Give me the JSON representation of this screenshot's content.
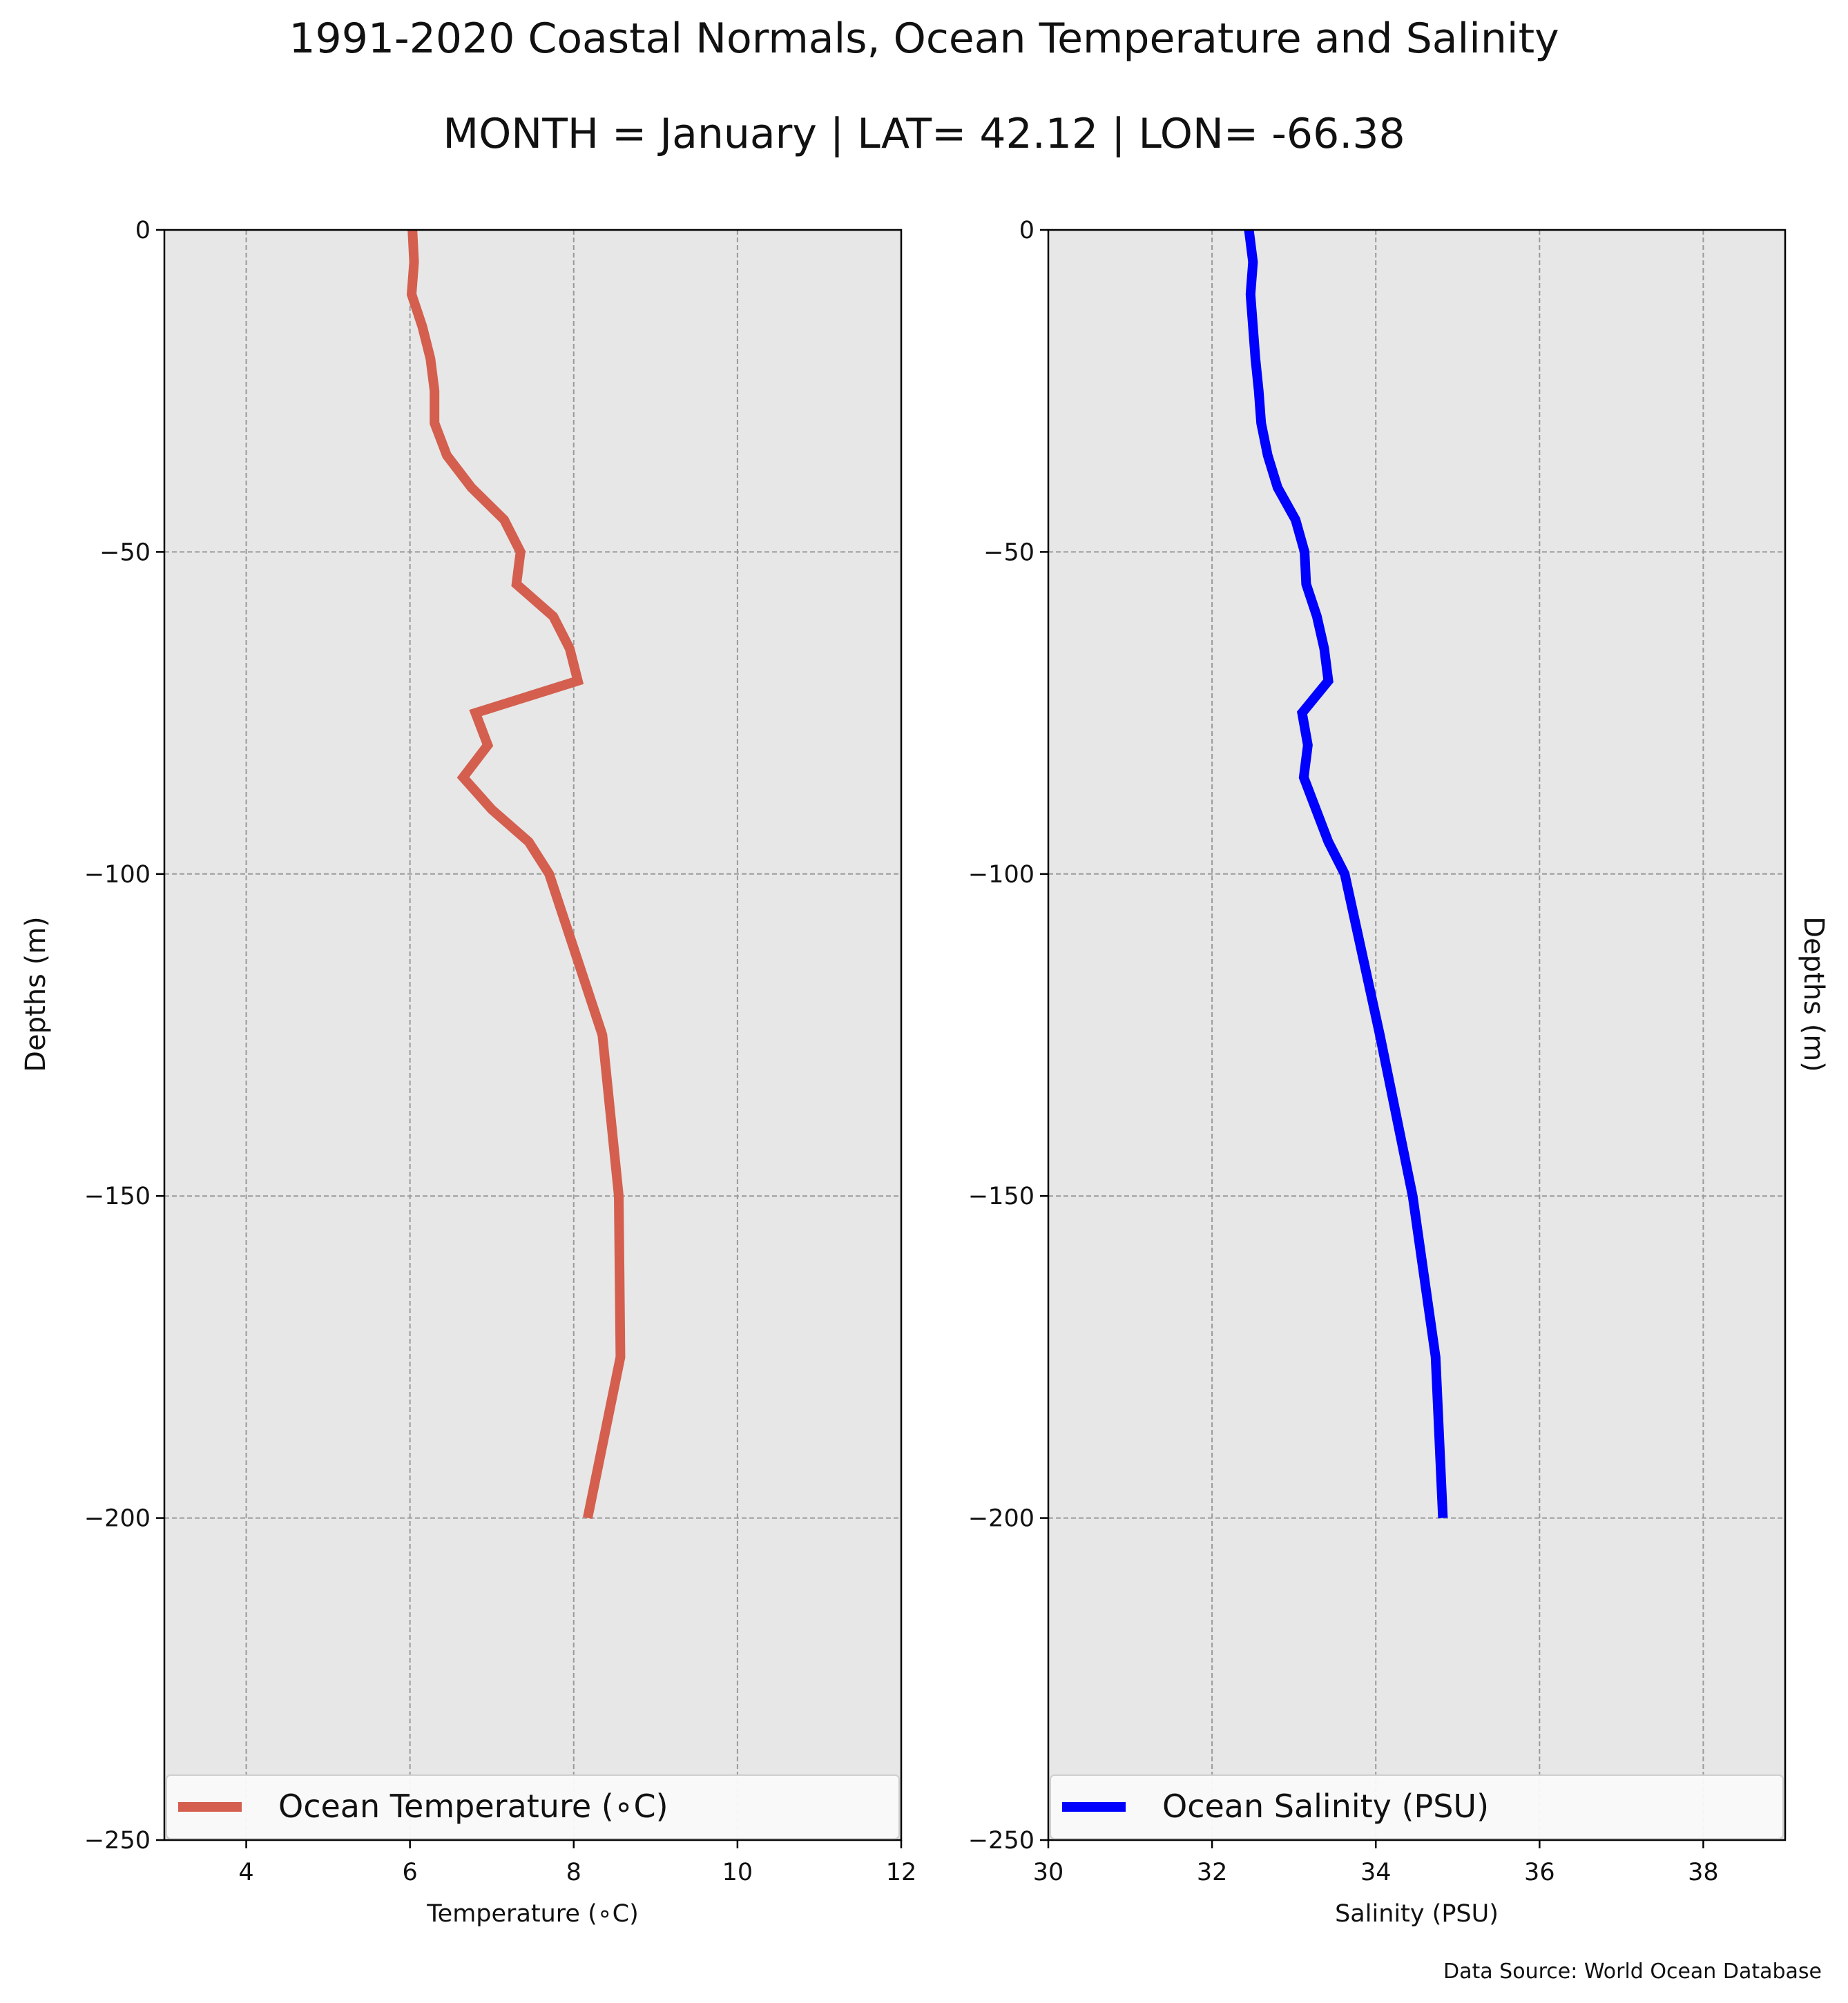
{
  "figure": {
    "title": "1991-2020 Coastal Normals, Ocean Temperature and Salinity",
    "subtitle": "MONTH = January | LAT= 42.12 | LON= -66.38",
    "source_note": "Data Source: World Ocean Database",
    "background": "#e7e7e7"
  },
  "chart_data": [
    {
      "type": "line",
      "panel": "left",
      "xlabel": "Temperature (∘C)",
      "ylabel": "Depths (m)",
      "xlim": [
        3,
        12
      ],
      "ylim": [
        -250,
        0
      ],
      "xticks": [
        4,
        6,
        8,
        10,
        12
      ],
      "yticks": [
        0,
        -50,
        -100,
        -150,
        -200,
        -250
      ],
      "ytick_labels": [
        "0",
        "−50",
        "−100",
        "−150",
        "−200",
        "−250"
      ],
      "grid": true,
      "legend_position": "bottom",
      "series": [
        {
          "name": "Ocean Temperature (∘C)",
          "color": "#d45f4f",
          "points": [
            [
              6.03,
              0
            ],
            [
              6.05,
              -5
            ],
            [
              6.02,
              -10
            ],
            [
              6.15,
              -15
            ],
            [
              6.25,
              -20
            ],
            [
              6.3,
              -25
            ],
            [
              6.3,
              -30
            ],
            [
              6.45,
              -35
            ],
            [
              6.75,
              -40
            ],
            [
              7.15,
              -45
            ],
            [
              7.35,
              -50
            ],
            [
              7.3,
              -55
            ],
            [
              7.75,
              -60
            ],
            [
              7.95,
              -65
            ],
            [
              8.05,
              -70
            ],
            [
              6.8,
              -75
            ],
            [
              6.95,
              -80
            ],
            [
              6.65,
              -85
            ],
            [
              7.0,
              -90
            ],
            [
              7.45,
              -95
            ],
            [
              7.7,
              -100
            ],
            [
              8.35,
              -125
            ],
            [
              8.55,
              -150
            ],
            [
              8.57,
              -175
            ],
            [
              8.17,
              -200
            ]
          ]
        }
      ]
    },
    {
      "type": "line",
      "panel": "right",
      "xlabel": "Salinity (PSU)",
      "ylabel": "Depths (m)",
      "xlim": [
        30,
        39
      ],
      "ylim": [
        -250,
        0
      ],
      "xticks": [
        30,
        32,
        34,
        36,
        38
      ],
      "yticks": [
        0,
        -50,
        -100,
        -150,
        -200,
        -250
      ],
      "ytick_labels": [
        "0",
        "−50",
        "−100",
        "−150",
        "−200",
        "−250"
      ],
      "grid": true,
      "legend_position": "bottom",
      "series": [
        {
          "name": "Ocean Salinity (PSU)",
          "color": "#0000ff",
          "points": [
            [
              32.45,
              0
            ],
            [
              32.5,
              -5
            ],
            [
              32.47,
              -10
            ],
            [
              32.53,
              -20
            ],
            [
              32.57,
              -25
            ],
            [
              32.6,
              -30
            ],
            [
              32.68,
              -35
            ],
            [
              32.8,
              -40
            ],
            [
              33.02,
              -45
            ],
            [
              33.13,
              -50
            ],
            [
              33.15,
              -55
            ],
            [
              33.28,
              -60
            ],
            [
              33.37,
              -65
            ],
            [
              33.42,
              -70
            ],
            [
              33.1,
              -75
            ],
            [
              33.17,
              -80
            ],
            [
              33.12,
              -85
            ],
            [
              33.42,
              -95
            ],
            [
              33.62,
              -100
            ],
            [
              34.05,
              -125
            ],
            [
              34.45,
              -150
            ],
            [
              34.73,
              -175
            ],
            [
              34.82,
              -200
            ]
          ]
        }
      ]
    }
  ]
}
